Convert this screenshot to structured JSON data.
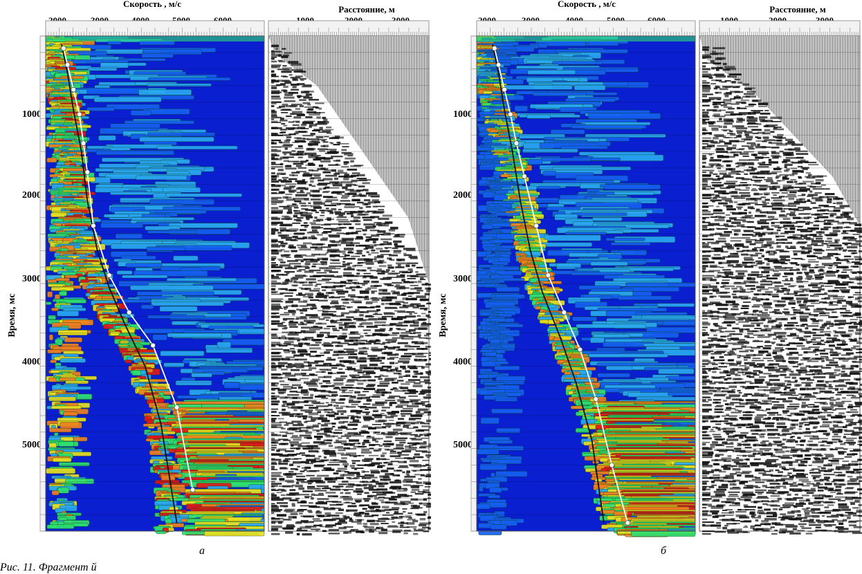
{
  "figure_caption": "Рис. 11. Фрагмент й",
  "panels": [
    {
      "sublabel": "а",
      "velocity_axis": {
        "title": "Скорость , м/с",
        "ticks": [
          "2000",
          "3000",
          "4000",
          "5000",
          "6000"
        ]
      },
      "distance_axis": {
        "title": "Расстояние, м",
        "ticks": [
          "1000",
          "2000",
          "3000"
        ]
      },
      "time_axis": {
        "title": "Время, мс",
        "ticks": [
          "1000",
          "2000",
          "3000",
          "4000",
          "5000"
        ]
      }
    },
    {
      "sublabel": "б",
      "velocity_axis": {
        "title": "Скорость , м/с",
        "ticks": [
          "2000",
          "3000",
          "4000",
          "5000",
          "6000"
        ]
      },
      "distance_axis": {
        "title": "Расстояние, м",
        "ticks": [
          "1000",
          "2000",
          "3000"
        ]
      },
      "time_axis": {
        "title": "Время, мс",
        "ticks": [
          "1000",
          "2000",
          "3000",
          "4000",
          "5000"
        ]
      }
    }
  ],
  "chart_data": [
    {
      "type": "heatmap",
      "title": "Скорость , м/с",
      "xlabel": "Скорость , м/с",
      "ylabel": "Время, мс",
      "xlim": [
        1500,
        7000
      ],
      "ylim": [
        0,
        6000
      ],
      "series": [
        {
          "x": [
            1950,
            2050,
            2200,
            2350,
            2450,
            2550,
            2700,
            3100,
            3600,
            4200,
            4800,
            5200
          ],
          "y": [
            150,
            350,
            650,
            950,
            1300,
            1650,
            2300,
            2900,
            3350,
            3750,
            4500,
            5500
          ]
        },
        {
          "x": [
            1900,
            2050,
            2200,
            2400,
            2550,
            2800,
            3100,
            3500,
            4000,
            4400,
            4800
          ],
          "y": [
            100,
            450,
            900,
            1400,
            2000,
            2600,
            3050,
            3500,
            4000,
            4700,
            5900
          ]
        }
      ],
      "color_scale": [
        "#0a1fd0",
        "#1460f0",
        "#2aa8f0",
        "#2ee070",
        "#e8e020",
        "#f08020",
        "#e01818"
      ]
    },
    {
      "type": "heatmap",
      "title": "Скорость , м/с",
      "xlabel": "Скорость , м/с",
      "ylabel": "Время, мс",
      "xlim": [
        1500,
        7000
      ],
      "ylim": [
        0,
        6000
      ],
      "series": [
        {
          "x": [
            1950,
            2050,
            2200,
            2350,
            2500,
            2700,
            3000,
            3300,
            3700,
            4100,
            4500,
            4900,
            5300
          ],
          "y": [
            150,
            350,
            650,
            950,
            1300,
            1700,
            2300,
            2900,
            3350,
            3800,
            4400,
            5200,
            5900
          ]
        },
        {
          "x": [
            1900,
            2050,
            2200,
            2400,
            2600,
            2850,
            3150,
            3600,
            4000,
            4400,
            4700
          ],
          "y": [
            100,
            450,
            900,
            1400,
            2000,
            2600,
            3100,
            3650,
            4200,
            4900,
            5900
          ]
        }
      ],
      "color_scale": [
        "#0a1fd0",
        "#1460f0",
        "#2aa8f0",
        "#2ee070",
        "#e8e020",
        "#f08020",
        "#e01818"
      ]
    }
  ]
}
